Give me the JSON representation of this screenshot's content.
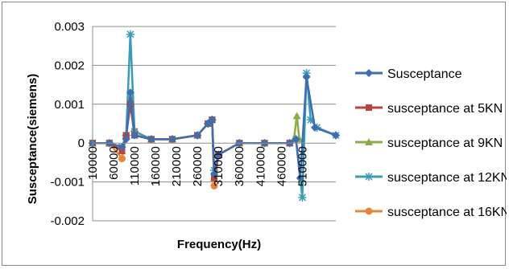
{
  "chart_data": {
    "type": "line",
    "title": "",
    "xlabel": "Frequency(Hz)",
    "ylabel": "Susceptance(siemens)",
    "ylim": [
      -0.002,
      0.003
    ],
    "y_ticks": [
      "0.003",
      "0.002",
      "0.001",
      "0",
      "-0.001",
      "-0.002"
    ],
    "y_tick_values": [
      0.003,
      0.002,
      0.001,
      0,
      -0.001,
      -0.002
    ],
    "x_ticks": [
      "10000",
      "60000",
      "110000",
      "160000",
      "210000",
      "260000",
      "310000",
      "360000",
      "410000",
      "460000",
      "510000"
    ],
    "x_tick_values": [
      10000,
      60000,
      110000,
      160000,
      210000,
      260000,
      310000,
      360000,
      410000,
      460000,
      510000
    ],
    "xlim": [
      10000,
      590000
    ],
    "grid": "horizontal",
    "legend_position": "right",
    "series": [
      {
        "name": "Susceptance",
        "color": "#3d6fb0",
        "marker": "diamond",
        "points": [
          [
            10000,
            0
          ],
          [
            50000,
            0
          ],
          [
            80000,
            -0.0001
          ],
          [
            90000,
            0.0001
          ],
          [
            100000,
            0.0013
          ],
          [
            110000,
            0.0002
          ],
          [
            150000,
            0.0001
          ],
          [
            200000,
            0.0001
          ],
          [
            260000,
            0.0002
          ],
          [
            285000,
            0.0005
          ],
          [
            295000,
            0.0006
          ],
          [
            300000,
            -0.0008
          ],
          [
            310000,
            -0.0003
          ],
          [
            360000,
            0
          ],
          [
            420000,
            0
          ],
          [
            480000,
            0
          ],
          [
            495000,
            0.0001
          ],
          [
            505000,
            -0.0009
          ],
          [
            520000,
            0.0017
          ],
          [
            540000,
            0.0004
          ],
          [
            590000,
            0.0002
          ]
        ]
      },
      {
        "name": "susceptance at 5KN",
        "color": "#b8443f",
        "marker": "square",
        "points": [
          [
            10000,
            0
          ],
          [
            50000,
            0
          ],
          [
            80000,
            -0.0002
          ],
          [
            90000,
            0.0002
          ],
          [
            100000,
            0.001
          ],
          [
            110000,
            0.0002
          ],
          [
            150000,
            0.0001
          ],
          [
            200000,
            0.0001
          ],
          [
            260000,
            0.0002
          ],
          [
            285000,
            0.0005
          ],
          [
            295000,
            0.0006
          ],
          [
            300000,
            -0.0009
          ],
          [
            310000,
            -0.0003
          ],
          [
            360000,
            0
          ],
          [
            420000,
            0
          ],
          [
            480000,
            0
          ]
        ]
      },
      {
        "name": "susceptance at 9KN",
        "color": "#8cad46",
        "marker": "triangle",
        "points": [
          [
            10000,
            0
          ],
          [
            50000,
            0
          ],
          [
            80000,
            -0.0002
          ],
          [
            90000,
            0.0002
          ],
          [
            100000,
            0.001
          ],
          [
            110000,
            0.0002
          ],
          [
            150000,
            0.0001
          ],
          [
            200000,
            0.0001
          ],
          [
            260000,
            0.0002
          ],
          [
            285000,
            0.0005
          ],
          [
            295000,
            0.0006
          ],
          [
            300000,
            -0.0009
          ],
          [
            310000,
            -0.0003
          ],
          [
            360000,
            0
          ],
          [
            420000,
            0
          ],
          [
            480000,
            0
          ],
          [
            490000,
            0.0001
          ],
          [
            497000,
            0.0007
          ],
          [
            503000,
            0.0001
          ]
        ]
      },
      {
        "name": "susceptance at 12KN",
        "color": "#3b9ab5",
        "marker": "star",
        "points": [
          [
            10000,
            0
          ],
          [
            50000,
            0
          ],
          [
            80000,
            -0.0001
          ],
          [
            90000,
            0.0002
          ],
          [
            100000,
            0.0028
          ],
          [
            110000,
            0.0003
          ],
          [
            150000,
            0.0001
          ],
          [
            200000,
            0.0001
          ],
          [
            260000,
            0.0002
          ],
          [
            285000,
            0.0005
          ],
          [
            295000,
            0.0006
          ],
          [
            300000,
            -0.0007
          ],
          [
            310000,
            -0.0003
          ],
          [
            360000,
            0
          ],
          [
            420000,
            0
          ],
          [
            480000,
            0
          ],
          [
            495000,
            0.0001
          ],
          [
            510000,
            -0.0014
          ],
          [
            520000,
            0.0018
          ],
          [
            530000,
            0.0006
          ],
          [
            545000,
            0.0004
          ],
          [
            590000,
            0.0002
          ]
        ]
      },
      {
        "name": "susceptance at 16KN",
        "color": "#e5853a",
        "marker": "circle",
        "points": [
          [
            10000,
            0
          ],
          [
            50000,
            0
          ],
          [
            80000,
            -0.0004
          ],
          [
            90000,
            0.0002
          ],
          [
            100000,
            0.0011
          ],
          [
            110000,
            0.0003
          ],
          [
            150000,
            0.0001
          ],
          [
            200000,
            0.0001
          ],
          [
            260000,
            0.0002
          ],
          [
            285000,
            0.0005
          ],
          [
            295000,
            0.0006
          ],
          [
            300000,
            -0.0011
          ],
          [
            310000,
            -0.0003
          ],
          [
            360000,
            0
          ],
          [
            420000,
            0
          ],
          [
            480000,
            0
          ]
        ]
      }
    ]
  }
}
